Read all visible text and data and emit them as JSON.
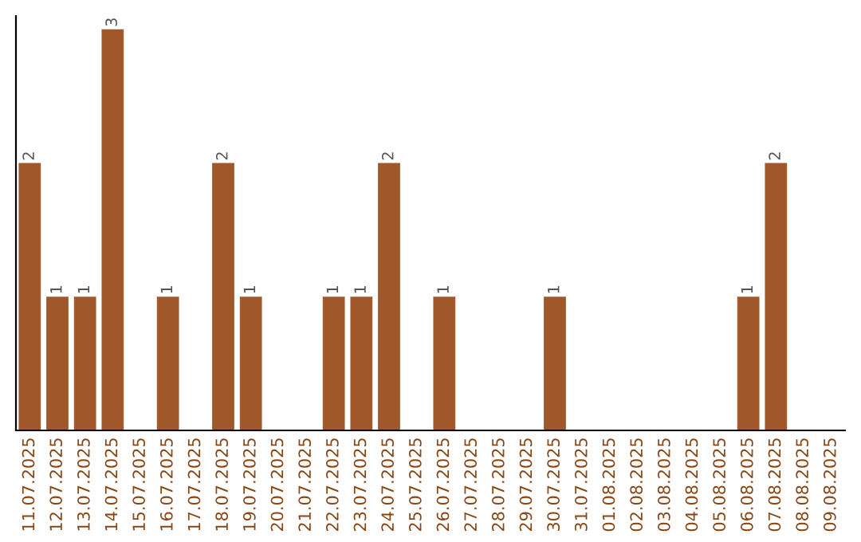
{
  "chart_data": {
    "type": "bar",
    "categories": [
      "11.07.2025",
      "12.07.2025",
      "13.07.2025",
      "14.07.2025",
      "15.07.2025",
      "16.07.2025",
      "17.07.2025",
      "18.07.2025",
      "19.07.2025",
      "20.07.2025",
      "21.07.2025",
      "22.07.2025",
      "23.07.2025",
      "24.07.2025",
      "25.07.2025",
      "26.07.2025",
      "27.07.2025",
      "28.07.2025",
      "29.07.2025",
      "30.07.2025",
      "31.07.2025",
      "01.08.2025",
      "02.08.2025",
      "03.08.2025",
      "04.08.2025",
      "05.08.2025",
      "06.08.2025",
      "07.08.2025",
      "08.08.2025",
      "09.08.2025"
    ],
    "values": [
      2,
      1,
      1,
      3,
      0,
      1,
      0,
      2,
      1,
      0,
      0,
      1,
      1,
      2,
      0,
      1,
      0,
      0,
      0,
      1,
      0,
      0,
      0,
      0,
      0,
      0,
      1,
      2,
      0,
      0
    ],
    "value_labels": [
      "2",
      "1",
      "1",
      "3",
      null,
      "1",
      null,
      "2",
      "1",
      null,
      null,
      "1",
      "1",
      "2",
      null,
      "1",
      null,
      null,
      null,
      "1",
      null,
      null,
      null,
      null,
      null,
      null,
      "1",
      "2",
      null,
      null
    ],
    "color": "#a0572a",
    "ylim": [
      0,
      3.1
    ],
    "tick_labels": "x",
    "grid": false,
    "legend": false
  }
}
